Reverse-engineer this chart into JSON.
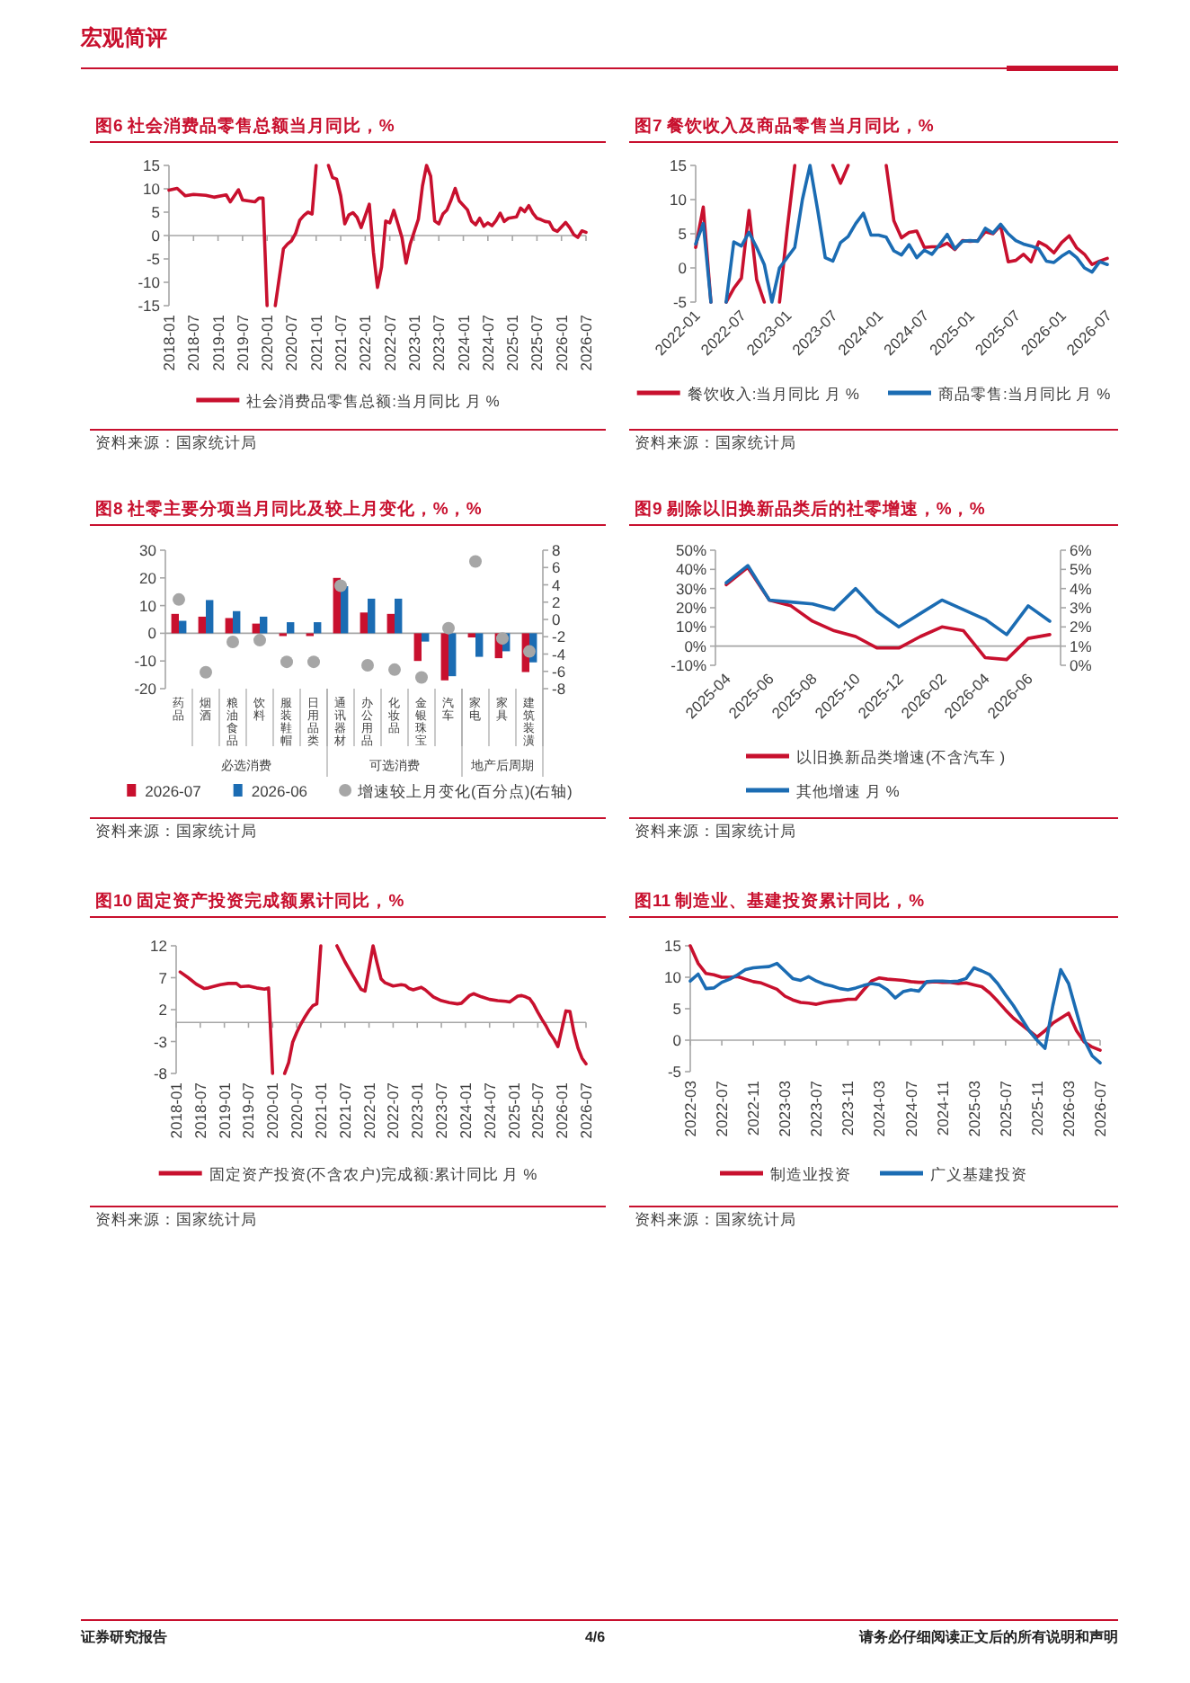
{
  "chart_data": [
    {
      "type": "line",
      "title": "图6  社会消费品零售总额当月同比，%",
      "xlim": [
        "2018-01",
        "2026-07"
      ],
      "xticks": [
        "2018-01",
        "2018-07",
        "2019-01",
        "2019-07",
        "2020-01",
        "2020-07",
        "2021-01",
        "2021-07",
        "2022-01",
        "2022-07",
        "2023-01",
        "2023-07",
        "2024-01",
        "2024-07",
        "2025-01",
        "2025-07",
        "2026-01",
        "2026-07"
      ],
      "ylim": [
        -15,
        15
      ],
      "yticks": [
        -15,
        -10,
        -5,
        0,
        5,
        10,
        15
      ],
      "legend": "bottom",
      "series": [
        {
          "name": "社会消费品零售总额:当月同比 月 %",
          "color": "#c8102e",
          "x": [
            "2018-01",
            "2018-03",
            "2018-05",
            "2018-07",
            "2018-10",
            "2018-12",
            "2019-03",
            "2019-04",
            "2019-06",
            "2019-07",
            "2019-10",
            "2019-11",
            "2019-12",
            "2020-01",
            "2020-03",
            "2020-05",
            "2020-06",
            "2020-07",
            "2020-08",
            "2020-09",
            "2020-10",
            "2020-11",
            "2020-12",
            "2021-01",
            "2021-04",
            "2021-05",
            "2021-06",
            "2021-07",
            "2021-08",
            "2021-09",
            "2021-10",
            "2021-11",
            "2021-12",
            "2022-02",
            "2022-03",
            "2022-04",
            "2022-05",
            "2022-06",
            "2022-07",
            "2022-08",
            "2022-09",
            "2022-10",
            "2022-11",
            "2022-12",
            "2023-02",
            "2023-03",
            "2023-04",
            "2023-05",
            "2023-06",
            "2023-07",
            "2023-08",
            "2023-09",
            "2023-10",
            "2023-11",
            "2023-12",
            "2024-02",
            "2024-03",
            "2024-04",
            "2024-05",
            "2024-06",
            "2024-07",
            "2024-08",
            "2024-09",
            "2024-10",
            "2024-11",
            "2024-12",
            "2025-02",
            "2025-03",
            "2025-04",
            "2025-05",
            "2025-06",
            "2025-07",
            "2025-08",
            "2025-09",
            "2025-10",
            "2025-11",
            "2025-12",
            "2026-02",
            "2026-03",
            "2026-04",
            "2026-05",
            "2026-06",
            "2026-07"
          ],
          "values": [
            9.7,
            10.1,
            8.5,
            8.8,
            8.6,
            8.2,
            8.7,
            7.2,
            9.8,
            7.6,
            7.2,
            8.0,
            8.0,
            -15,
            -15,
            -2.8,
            -1.8,
            -1.1,
            0.5,
            3.3,
            4.3,
            5.0,
            4.6,
            15,
            15,
            12.4,
            12.1,
            8.5,
            2.5,
            4.4,
            4.9,
            3.9,
            1.7,
            6.7,
            -3.5,
            -11.1,
            -6.7,
            3.1,
            2.7,
            5.4,
            2.5,
            -0.5,
            -5.9,
            -1.8,
            3.5,
            10.6,
            15,
            12.7,
            3.1,
            2.5,
            4.6,
            5.5,
            7.6,
            10.1,
            7.4,
            5.5,
            3.1,
            2.3,
            3.7,
            2.0,
            2.7,
            2.1,
            3.2,
            4.8,
            3.0,
            3.7,
            4.0,
            5.9,
            5.1,
            6.4,
            4.8,
            3.7,
            3.4,
            3.0,
            2.9,
            1.3,
            0.9,
            2.8,
            1.7,
            0.2,
            -0.4,
            1.0,
            0.7
          ]
        }
      ],
      "annotations": [
        "资料来源：国家统计局",
        "宏观简评"
      ]
    },
    {
      "type": "line",
      "title": "图7  餐饮收入及商品零售当月同比，%",
      "xlim": [
        "2022-01",
        "2026-07"
      ],
      "xticks": [
        "2022-01",
        "2022-07",
        "2023-01",
        "2023-07",
        "2024-01",
        "2024-07",
        "2025-01",
        "2025-07",
        "2026-01",
        "2026-07"
      ],
      "ylim": [
        -5,
        15
      ],
      "yticks": [
        -5,
        0,
        5,
        10,
        15
      ],
      "legend": "bottom",
      "series": [
        {
          "name": "餐饮收入:当月同比 月 %",
          "color": "#c8102e",
          "x": [
            "2022-01",
            "2022-02",
            "2022-03",
            "2022-05",
            "2022-06",
            "2022-07",
            "2022-08",
            "2022-09",
            "2022-10",
            "2022-12",
            "2023-01",
            "2023-02",
            "2023-07",
            "2023-08",
            "2023-09",
            "2024-02",
            "2024-03",
            "2024-04",
            "2024-05",
            "2024-06",
            "2024-07",
            "2024-08",
            "2024-09",
            "2024-10",
            "2024-11",
            "2024-12",
            "2025-01",
            "2025-02",
            "2025-03",
            "2025-04",
            "2025-05",
            "2025-06",
            "2025-07",
            "2025-08",
            "2025-09",
            "2025-10",
            "2025-11",
            "2025-12",
            "2026-01",
            "2026-02",
            "2026-03",
            "2026-04",
            "2026-05",
            "2026-06",
            "2026-07"
          ],
          "values": [
            3.0,
            8.9,
            -5,
            -5,
            -3.0,
            -1.5,
            8.4,
            -1.7,
            -5,
            -5,
            5.6,
            15,
            15,
            12.4,
            15,
            15,
            6.9,
            4.4,
            5.2,
            5.4,
            3.0,
            3.1,
            3.1,
            3.6,
            2.7,
            4.0,
            3.9,
            4.0,
            5.3,
            5.0,
            6.2,
            0.9,
            1.1,
            2.0,
            0.9,
            3.8,
            3.2,
            2.2,
            3.7,
            4.7,
            2.9,
            2.0,
            0.5,
            1.0,
            1.4
          ]
        },
        {
          "name": "商品零售:当月同比 月 %",
          "color": "#1b6cb3",
          "x": [
            "2022-01",
            "2022-02",
            "2022-03",
            "2022-05",
            "2022-06",
            "2022-07",
            "2022-08",
            "2022-09",
            "2022-10",
            "2022-11",
            "2022-12",
            "2023-01",
            "2023-02",
            "2023-03",
            "2023-04",
            "2023-05",
            "2023-06",
            "2023-07",
            "2023-08",
            "2023-09",
            "2023-10",
            "2023-11",
            "2023-12",
            "2024-01",
            "2024-02",
            "2024-03",
            "2024-04",
            "2024-05",
            "2024-06",
            "2024-07",
            "2024-08",
            "2024-09",
            "2024-10",
            "2024-11",
            "2024-12",
            "2025-01",
            "2025-02",
            "2025-03",
            "2025-04",
            "2025-05",
            "2025-06",
            "2025-07",
            "2025-08",
            "2025-09",
            "2025-10",
            "2025-11",
            "2025-12",
            "2026-01",
            "2026-02",
            "2026-03",
            "2026-04",
            "2026-05",
            "2026-06",
            "2026-07"
          ],
          "values": [
            3.5,
            6.5,
            -5,
            -5,
            3.8,
            3.2,
            5.2,
            3.0,
            0.5,
            -5,
            0.0,
            1.5,
            3.0,
            10.0,
            15,
            8.5,
            1.5,
            1.0,
            3.7,
            4.6,
            6.5,
            8.0,
            4.8,
            4.8,
            4.5,
            2.5,
            1.9,
            3.4,
            1.5,
            2.6,
            2.0,
            3.4,
            4.9,
            2.8,
            3.9,
            4.0,
            3.9,
            5.8,
            5.1,
            6.4,
            5.0,
            4.0,
            3.5,
            3.2,
            2.8,
            1.0,
            0.8,
            1.7,
            2.4,
            1.5,
            0.0,
            -0.6,
            0.9,
            0.5
          ]
        }
      ],
      "annotations": [
        "资料来源：国家统计局"
      ]
    },
    {
      "type": "bar",
      "title": "图8  社零主要分项当月同比及较上月变化，%，%",
      "categories": [
        "药品",
        "烟酒",
        "粮油食品",
        "饮料",
        "服装鞋帽",
        "日用品类",
        "通讯器材",
        "办公用品",
        "化妆品",
        "金银珠宝",
        "汽车",
        "家电",
        "家具",
        "建筑装潢"
      ],
      "ylim": [
        -20,
        30
      ],
      "yticks": [
        -20,
        -10,
        0,
        10,
        20,
        30
      ],
      "y2lim": [
        -8,
        8
      ],
      "y2ticks": [
        -8,
        -6,
        -4,
        -2,
        0,
        2,
        4,
        6,
        8
      ],
      "legend": "bottom",
      "series": [
        {
          "name": "2026-07",
          "color": "#c8102e",
          "values": [
            7,
            6,
            5.5,
            3.5,
            -1,
            -1,
            20,
            7.5,
            7,
            -10,
            -17,
            -1.5,
            -9,
            -14
          ]
        },
        {
          "name": "2026-06",
          "color": "#1b6cb3",
          "values": [
            4.5,
            12,
            8,
            6,
            4,
            4,
            17,
            12.5,
            12.5,
            -3,
            -15.5,
            -8.5,
            -6.5,
            -10.5
          ]
        },
        {
          "name": "增速较上月变化(百分点)(右轴)",
          "type": "scatter",
          "axis": "y2",
          "color": "#a6a6a6",
          "values": [
            2.3,
            -6.1,
            -2.6,
            -2.4,
            -4.9,
            -4.9,
            3.9,
            -5.3,
            -5.8,
            -6.7,
            -1.0,
            6.7,
            -2.2,
            -3.7
          ]
        }
      ],
      "annotations": [
        "资料来源：国家统计局",
        "必选消费",
        "可选消费",
        "地产后周期"
      ]
    },
    {
      "type": "line",
      "title": "图9  剔除以旧换新品类后的社零增速，%，%",
      "categories": [
        "2025-04",
        null,
        "2025-06",
        null,
        "2025-08",
        null,
        "2025-10",
        null,
        "2025-12",
        null,
        "2026-02",
        null,
        "2026-04",
        null,
        "2026-06",
        null
      ],
      "ylim": [
        -10,
        50
      ],
      "yticks": [
        {
          "value": -10,
          "label": "-10%"
        },
        {
          "value": 0,
          "label": "0%"
        },
        {
          "value": 10,
          "label": "10%"
        },
        {
          "value": 20,
          "label": "20%"
        },
        {
          "value": 30,
          "label": "30%"
        },
        {
          "value": 40,
          "label": "40%"
        },
        {
          "value": 50,
          "label": "50%"
        }
      ],
      "y2lim": [
        0,
        6
      ],
      "y2ticks": [
        {
          "value": 0,
          "label": "0%"
        },
        {
          "value": 1,
          "label": "1%"
        },
        {
          "value": 2,
          "label": "2%"
        },
        {
          "value": 3,
          "label": "3%"
        },
        {
          "value": 4,
          "label": "4%"
        },
        {
          "value": 5,
          "label": "5%"
        },
        {
          "value": 6,
          "label": "6%"
        }
      ],
      "legend": "bottom",
      "series": [
        {
          "name": "以旧换新品类增速(不含汽车 )",
          "color": "#c8102e",
          "values": [
            32,
            41,
            24,
            21,
            13,
            8,
            5,
            -1,
            -1,
            5,
            10,
            8,
            -6,
            -7,
            4,
            6
          ]
        },
        {
          "name": "其他增速 月 %",
          "color": "#1b6cb3",
          "axis": "y2",
          "values": [
            4.3,
            5.2,
            3.4,
            3.3,
            3.2,
            2.9,
            4.0,
            2.8,
            2.0,
            2.7,
            3.4,
            2.9,
            2.4,
            1.6,
            3.1,
            2.3
          ]
        }
      ],
      "annotations": [
        "资料来源：国家统计局"
      ]
    },
    {
      "type": "line",
      "title": "图10  固定资产投资完成额累计同比，%",
      "xlim": [
        "2018-01",
        "2026-07"
      ],
      "xticks": [
        "2018-01",
        "2018-07",
        "2019-01",
        "2019-07",
        "2020-01",
        "2020-07",
        "2021-01",
        "2021-07",
        "2022-01",
        "2022-07",
        "2023-01",
        "2023-07",
        "2024-01",
        "2024-07",
        "2025-01",
        "2025-07",
        "2026-01",
        "2026-07"
      ],
      "ylim": [
        -8,
        12
      ],
      "yticks": [
        -8,
        -3,
        2,
        7,
        12
      ],
      "legend": "bottom",
      "series": [
        {
          "name": "固定资产投资(不含农户)完成额:累计同比 月 %",
          "color": "#c8102e",
          "x": [
            "2018-02",
            "2018-04",
            "2018-06",
            "2018-08",
            "2018-09",
            "2018-12",
            "2019-02",
            "2019-04",
            "2019-05",
            "2019-07",
            "2019-09",
            "2019-11",
            "2019-12",
            "2020-01",
            "2020-04",
            "2020-05",
            "2020-06",
            "2020-07",
            "2020-08",
            "2020-09",
            "2020-10",
            "2020-11",
            "2020-12",
            "2021-01",
            "2021-05",
            "2021-07",
            "2021-09",
            "2021-11",
            "2021-12",
            "2022-02",
            "2022-03",
            "2022-04",
            "2022-05",
            "2022-07",
            "2022-09",
            "2022-10",
            "2022-11",
            "2022-12",
            "2023-02",
            "2023-03",
            "2023-05",
            "2023-07",
            "2023-09",
            "2023-11",
            "2023-12",
            "2024-02",
            "2024-03",
            "2024-05",
            "2024-07",
            "2024-09",
            "2024-11",
            "2024-12",
            "2025-02",
            "2025-03",
            "2025-04",
            "2025-05",
            "2025-06",
            "2025-07",
            "2025-08",
            "2025-09",
            "2025-10",
            "2025-11",
            "2025-12",
            "2026-02",
            "2026-03",
            "2026-04",
            "2026-05",
            "2026-06",
            "2026-07"
          ],
          "values": [
            7.9,
            7.0,
            6.0,
            5.3,
            5.4,
            5.9,
            6.1,
            6.1,
            5.6,
            5.7,
            5.4,
            5.2,
            5.4,
            -8,
            -8,
            -6.3,
            -3.1,
            -1.6,
            -0.3,
            0.8,
            1.8,
            2.6,
            2.9,
            12,
            12,
            9.5,
            7.3,
            5.2,
            4.9,
            12,
            9.3,
            6.8,
            6.2,
            5.7,
            5.9,
            5.8,
            5.3,
            5.1,
            5.5,
            5.1,
            4.0,
            3.4,
            3.1,
            2.9,
            3.0,
            4.2,
            4.5,
            4.0,
            3.6,
            3.4,
            3.3,
            3.2,
            4.1,
            4.2,
            4.0,
            3.7,
            2.8,
            1.6,
            0.5,
            -0.5,
            -1.7,
            -2.6,
            -3.8,
            1.8,
            1.7,
            -1.6,
            -4.0,
            -5.6,
            -6.5
          ]
        }
      ],
      "annotations": [
        "资料来源：国家统计局"
      ]
    },
    {
      "type": "line",
      "title": "图11  制造业、基建投资累计同比，%",
      "xlim": [
        "2022-03",
        "2026-07"
      ],
      "xticks": [
        "2022-03",
        "2022-07",
        "2022-11",
        "2023-03",
        "2023-07",
        "2023-11",
        "2024-03",
        "2024-07",
        "2024-11",
        "2025-03",
        "2025-07",
        "2025-11",
        "2026-03",
        "2026-07"
      ],
      "ylim": [
        -5,
        15
      ],
      "yticks": [
        -5,
        0,
        5,
        10,
        15
      ],
      "legend": "bottom",
      "x": [
        "2022-03",
        "2022-04",
        "2022-05",
        "2022-06",
        "2022-07",
        "2022-08",
        "2022-09",
        "2022-10",
        "2022-11",
        "2022-12",
        "2023-01",
        "2023-02",
        "2023-03",
        "2023-04",
        "2023-05",
        "2023-06",
        "2023-07",
        "2023-08",
        "2023-09",
        "2023-10",
        "2023-11",
        "2023-12",
        "2024-01",
        "2024-02",
        "2024-03",
        "2024-04",
        "2024-05",
        "2024-06",
        "2024-07",
        "2024-08",
        "2024-09",
        "2024-10",
        "2024-11",
        "2024-12",
        "2025-01",
        "2025-02",
        "2025-03",
        "2025-04",
        "2025-05",
        "2025-06",
        "2025-07",
        "2025-08",
        "2025-09",
        "2025-10",
        "2025-11",
        "2025-12",
        "2026-01",
        "2026-02",
        "2026-03",
        "2026-04",
        "2026-05",
        "2026-06",
        "2026-07"
      ],
      "series": [
        {
          "name": "制造业投资",
          "color": "#c8102e",
          "values": [
            15,
            12.2,
            10.6,
            10.4,
            10.0,
            10.0,
            10.1,
            9.7,
            9.3,
            9.1,
            8.6,
            8.1,
            7.0,
            6.4,
            6.0,
            5.9,
            5.7,
            6.0,
            6.2,
            6.3,
            6.5,
            6.5,
            8.0,
            9.4,
            9.9,
            9.7,
            9.6,
            9.5,
            9.3,
            9.2,
            9.2,
            9.3,
            9.2,
            9.2,
            9.0,
            9.1,
            8.8,
            8.5,
            7.5,
            6.2,
            4.8,
            3.5,
            2.5,
            1.5,
            0.5,
            1.5,
            2.7,
            3.5,
            4.3,
            1.5,
            -0.3,
            -1.1,
            -1.6
          ]
        },
        {
          "name": "广义基建投资",
          "color": "#1b6cb3",
          "values": [
            9.4,
            10.5,
            8.2,
            8.3,
            9.2,
            9.7,
            10.4,
            11.2,
            11.5,
            11.6,
            11.7,
            12.2,
            11.0,
            9.8,
            9.5,
            10.1,
            9.4,
            8.9,
            8.6,
            8.2,
            8.0,
            8.3,
            8.7,
            9.0,
            8.8,
            8.0,
            6.7,
            7.7,
            8.0,
            7.8,
            9.3,
            9.4,
            9.4,
            9.3,
            9.4,
            9.8,
            11.5,
            11.0,
            10.4,
            9.0,
            7.2,
            5.5,
            3.5,
            1.5,
            0.0,
            -1.3,
            5.5,
            11.2,
            9.0,
            4.5,
            0.0,
            -2.5,
            -3.6
          ]
        }
      ],
      "annotations": [
        "资料来源：国家统计局",
        "证券研究报告",
        "4/6",
        "请务必仔细阅读正文后的所有说明和声明"
      ]
    }
  ]
}
